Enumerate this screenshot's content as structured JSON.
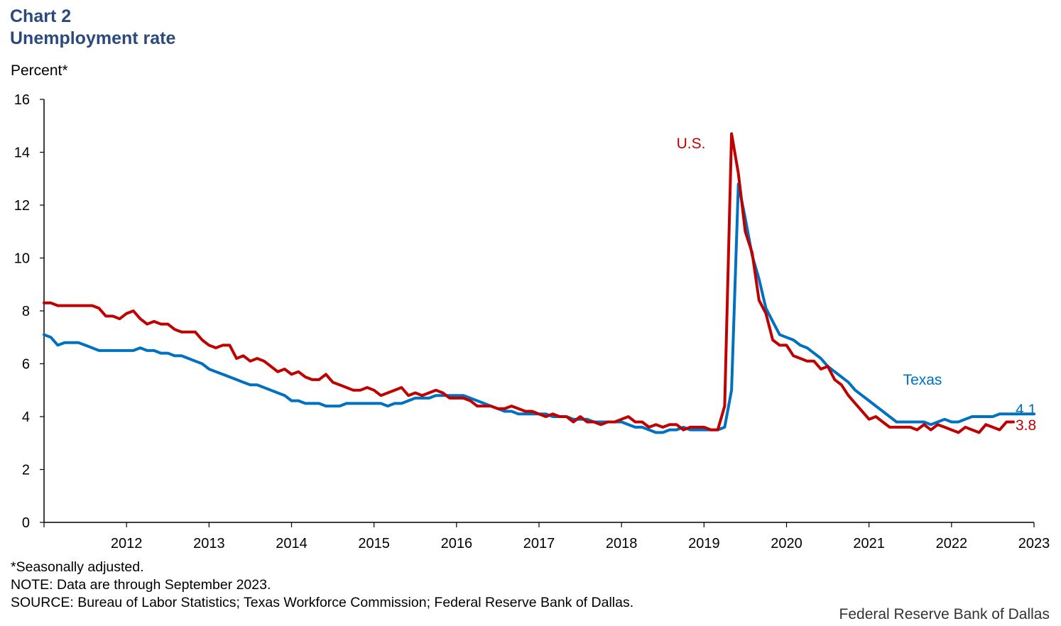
{
  "header": {
    "chart_number": "Chart 2",
    "title": "Unemployment rate"
  },
  "unit_label": "Percent*",
  "footnotes": {
    "seasonal": "*Seasonally adjusted.",
    "note": "NOTE: Data are through  September 2023.",
    "source": "SOURCE: Bureau  of Labor Statistics; Texas Workforce Commission; Federal  Reserve Bank of Dallas."
  },
  "credit": "Federal Reserve Bank of Dallas",
  "colors": {
    "us": "#c00000",
    "texas": "#0070c0",
    "title": "#2b4a7c"
  },
  "chart_data": {
    "type": "line",
    "title": "Unemployment rate",
    "ylabel": "Percent*",
    "ylim": [
      0,
      16
    ],
    "yticks": [
      "0",
      "2",
      "4",
      "6",
      "8",
      "10",
      "12",
      "14",
      "16"
    ],
    "x_start": 2011.5,
    "x_end": 2023.5,
    "x_tick_labels": [
      "2012",
      "2013",
      "2014",
      "2015",
      "2016",
      "2017",
      "2018",
      "2019",
      "2020",
      "2021",
      "2022",
      "2023"
    ],
    "grid": false,
    "series": [
      {
        "name": "Texas",
        "label": "Texas",
        "end_value": "4.1",
        "start": 2011.5,
        "step": 0.0833,
        "values": [
          7.1,
          7.0,
          6.7,
          6.8,
          6.8,
          6.8,
          6.7,
          6.6,
          6.5,
          6.5,
          6.5,
          6.5,
          6.5,
          6.5,
          6.6,
          6.5,
          6.5,
          6.4,
          6.4,
          6.3,
          6.3,
          6.2,
          6.1,
          6.0,
          5.8,
          5.7,
          5.6,
          5.5,
          5.4,
          5.3,
          5.2,
          5.2,
          5.1,
          5.0,
          4.9,
          4.8,
          4.6,
          4.6,
          4.5,
          4.5,
          4.5,
          4.4,
          4.4,
          4.4,
          4.5,
          4.5,
          4.5,
          4.5,
          4.5,
          4.5,
          4.4,
          4.5,
          4.5,
          4.6,
          4.7,
          4.7,
          4.7,
          4.8,
          4.8,
          4.8,
          4.8,
          4.8,
          4.7,
          4.6,
          4.5,
          4.4,
          4.3,
          4.2,
          4.2,
          4.1,
          4.1,
          4.1,
          4.1,
          4.1,
          4.0,
          4.0,
          4.0,
          3.9,
          3.9,
          3.9,
          3.8,
          3.8,
          3.8,
          3.8,
          3.8,
          3.7,
          3.6,
          3.6,
          3.5,
          3.4,
          3.4,
          3.5,
          3.5,
          3.6,
          3.5,
          3.5,
          3.5,
          3.5,
          3.5,
          3.6,
          5.0,
          12.8,
          11.5,
          10.1,
          9.2,
          8.1,
          7.6,
          7.1,
          7.0,
          6.9,
          6.7,
          6.6,
          6.4,
          6.2,
          5.9,
          5.7,
          5.5,
          5.3,
          5.0,
          4.8,
          4.6,
          4.4,
          4.2,
          4.0,
          3.8,
          3.8,
          3.8,
          3.8,
          3.8,
          3.7,
          3.8,
          3.9,
          3.8,
          3.8,
          3.9,
          4.0,
          4.0,
          4.0,
          4.0,
          4.1,
          4.1,
          4.1,
          4.1,
          4.1,
          4.1
        ]
      },
      {
        "name": "U.S.",
        "label": "U.S.",
        "end_value": "3.8",
        "start": 2011.5,
        "step": 0.0833,
        "values": [
          8.3,
          8.3,
          8.2,
          8.2,
          8.2,
          8.2,
          8.2,
          8.2,
          8.1,
          7.8,
          7.8,
          7.7,
          7.9,
          8.0,
          7.7,
          7.5,
          7.6,
          7.5,
          7.5,
          7.3,
          7.2,
          7.2,
          7.2,
          6.9,
          6.7,
          6.6,
          6.7,
          6.7,
          6.2,
          6.3,
          6.1,
          6.2,
          6.1,
          5.9,
          5.7,
          5.8,
          5.6,
          5.7,
          5.5,
          5.4,
          5.4,
          5.6,
          5.3,
          5.2,
          5.1,
          5.0,
          5.0,
          5.1,
          5.0,
          4.8,
          4.9,
          5.0,
          5.1,
          4.8,
          4.9,
          4.8,
          4.9,
          5.0,
          4.9,
          4.7,
          4.7,
          4.7,
          4.6,
          4.4,
          4.4,
          4.4,
          4.3,
          4.3,
          4.4,
          4.3,
          4.2,
          4.2,
          4.1,
          4.0,
          4.1,
          4.0,
          4.0,
          3.8,
          4.0,
          3.8,
          3.8,
          3.7,
          3.8,
          3.8,
          3.9,
          4.0,
          3.8,
          3.8,
          3.6,
          3.7,
          3.6,
          3.7,
          3.7,
          3.5,
          3.6,
          3.6,
          3.6,
          3.5,
          3.5,
          4.4,
          14.7,
          13.2,
          11.0,
          10.2,
          8.4,
          7.9,
          6.9,
          6.7,
          6.7,
          6.3,
          6.2,
          6.1,
          6.1,
          5.8,
          5.9,
          5.4,
          5.2,
          4.8,
          4.5,
          4.2,
          3.9,
          4.0,
          3.8,
          3.6,
          3.6,
          3.6,
          3.6,
          3.5,
          3.7,
          3.5,
          3.7,
          3.6,
          3.5,
          3.4,
          3.6,
          3.5,
          3.4,
          3.7,
          3.6,
          3.5,
          3.8,
          3.8
        ]
      }
    ]
  }
}
